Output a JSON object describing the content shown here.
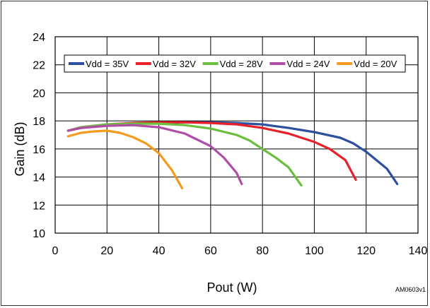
{
  "chart_data": {
    "type": "line",
    "xlabel": "Pout (W)",
    "ylabel": "Gain (dB)",
    "xlim": [
      0,
      140
    ],
    "ylim": [
      10,
      24
    ],
    "x_ticks": [
      "0",
      "20",
      "40",
      "60",
      "80",
      "100",
      "120",
      "140"
    ],
    "y_ticks": [
      "10",
      "12",
      "14",
      "16",
      "18",
      "20",
      "22",
      "24"
    ],
    "grid": true,
    "legend_position": "top",
    "figure_code": "AM0603v1",
    "series": [
      {
        "name": "Vdd = 35V",
        "color": "#2e4fa0",
        "points": [
          [
            5,
            17.3
          ],
          [
            10,
            17.5
          ],
          [
            20,
            17.7
          ],
          [
            30,
            17.8
          ],
          [
            40,
            17.85
          ],
          [
            50,
            17.9
          ],
          [
            60,
            17.9
          ],
          [
            70,
            17.85
          ],
          [
            80,
            17.75
          ],
          [
            90,
            17.5
          ],
          [
            100,
            17.2
          ],
          [
            110,
            16.8
          ],
          [
            115,
            16.4
          ],
          [
            120,
            15.8
          ],
          [
            128,
            14.6
          ],
          [
            132,
            13.5
          ]
        ]
      },
      {
        "name": "Vdd = 32V",
        "color": "#e8202a",
        "points": [
          [
            5,
            17.3
          ],
          [
            10,
            17.55
          ],
          [
            20,
            17.75
          ],
          [
            30,
            17.85
          ],
          [
            40,
            17.9
          ],
          [
            50,
            17.9
          ],
          [
            60,
            17.85
          ],
          [
            70,
            17.75
          ],
          [
            80,
            17.5
          ],
          [
            90,
            17.1
          ],
          [
            100,
            16.5
          ],
          [
            106,
            16.0
          ],
          [
            112,
            15.2
          ],
          [
            116,
            13.8
          ]
        ]
      },
      {
        "name": "Vdd = 28V",
        "color": "#6bbf3f",
        "points": [
          [
            5,
            17.3
          ],
          [
            10,
            17.55
          ],
          [
            20,
            17.75
          ],
          [
            30,
            17.8
          ],
          [
            40,
            17.8
          ],
          [
            50,
            17.7
          ],
          [
            60,
            17.45
          ],
          [
            70,
            17.0
          ],
          [
            75,
            16.6
          ],
          [
            80,
            16.0
          ],
          [
            85,
            15.4
          ],
          [
            90,
            14.7
          ],
          [
            95,
            13.4
          ]
        ]
      },
      {
        "name": "Vdd = 24V",
        "color": "#b04ea6",
        "points": [
          [
            5,
            17.3
          ],
          [
            10,
            17.5
          ],
          [
            20,
            17.65
          ],
          [
            30,
            17.7
          ],
          [
            40,
            17.55
          ],
          [
            50,
            17.1
          ],
          [
            60,
            16.2
          ],
          [
            65,
            15.4
          ],
          [
            70,
            14.3
          ],
          [
            72,
            13.5
          ]
        ]
      },
      {
        "name": "Vdd = 20V",
        "color": "#f39a1f",
        "points": [
          [
            5,
            16.9
          ],
          [
            10,
            17.15
          ],
          [
            15,
            17.25
          ],
          [
            20,
            17.3
          ],
          [
            25,
            17.15
          ],
          [
            30,
            16.85
          ],
          [
            35,
            16.4
          ],
          [
            40,
            15.7
          ],
          [
            45,
            14.5
          ],
          [
            49,
            13.2
          ]
        ]
      }
    ]
  }
}
